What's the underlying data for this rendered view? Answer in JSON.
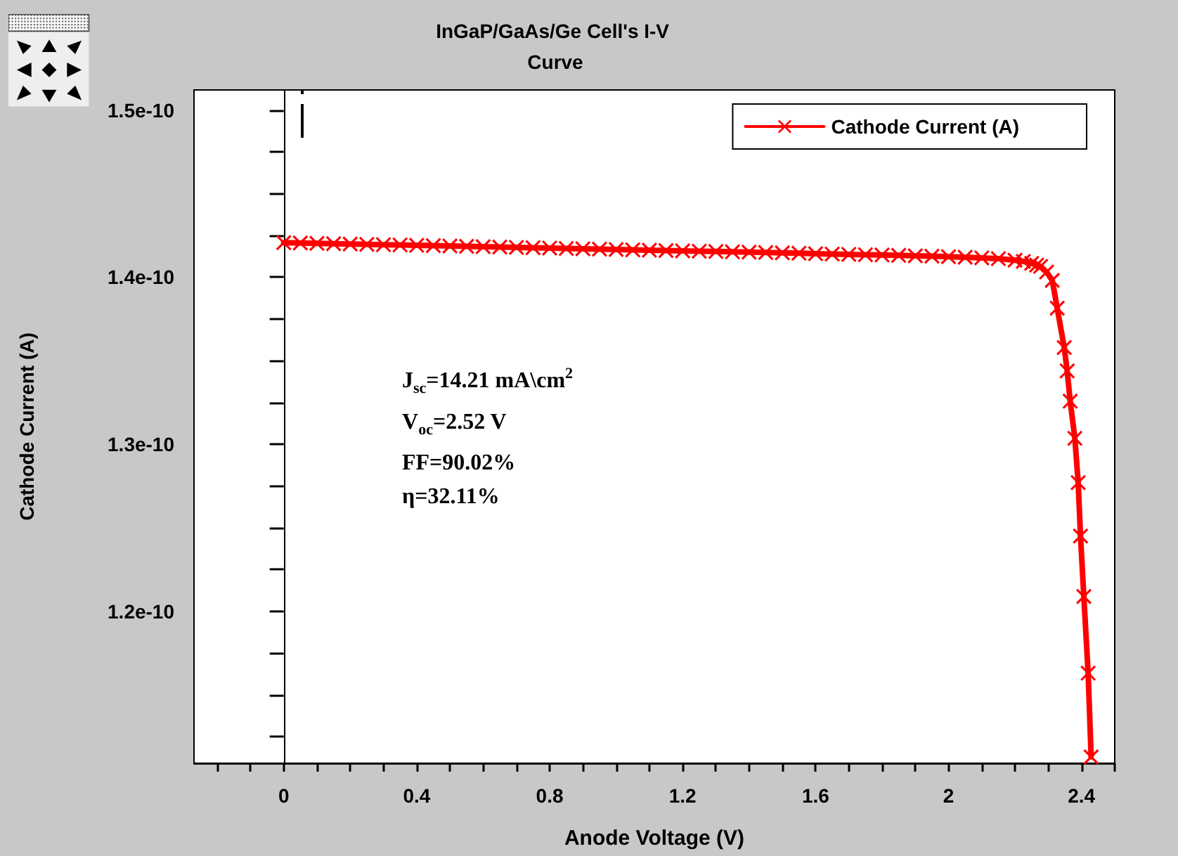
{
  "chart_data": {
    "type": "line",
    "title": "InGaP/GaAs/Ge Cell's I-V Curve",
    "xlabel": "Anode Voltage (V)",
    "ylabel": "Cathode Current (A)",
    "annotations": [
      "J$_{sc}$=14.21 mA\\cm$^{2}$",
      "V$_{oc}$=2.52 V",
      "FF=90.02%",
      "η=32.11%"
    ],
    "x": [
      0,
      0.05,
      0.1,
      0.15,
      0.2,
      0.25,
      0.3,
      0.35,
      0.4,
      0.45,
      0.5,
      0.55,
      0.6,
      0.65,
      0.7,
      0.75,
      0.8,
      0.85,
      0.9,
      0.95,
      1.0,
      1.05,
      1.1,
      1.15,
      1.2,
      1.25,
      1.3,
      1.35,
      1.4,
      1.45,
      1.5,
      1.55,
      1.6,
      1.65,
      1.7,
      1.75,
      1.8,
      1.85,
      1.9,
      1.95,
      2.0,
      2.05,
      2.1,
      2.15,
      2.2,
      2.225,
      2.25,
      2.265,
      2.277,
      2.295,
      2.312,
      2.327,
      2.348,
      2.357,
      2.366,
      2.38,
      2.39,
      2.397,
      2.407,
      2.42,
      2.429
    ],
    "series": [
      {
        "name": "Cathode Current (A)",
        "color": "#ff0000",
        "values": [
          1.4206e-10,
          1.4204e-10,
          1.4202e-10,
          1.42e-10,
          1.4198e-10,
          1.4196e-10,
          1.4194e-10,
          1.4192e-10,
          1.419e-10,
          1.4188e-10,
          1.4186e-10,
          1.4184e-10,
          1.4182e-10,
          1.418e-10,
          1.4178e-10,
          1.4176e-10,
          1.4174e-10,
          1.4171e-10,
          1.4169e-10,
          1.4167e-10,
          1.4165e-10,
          1.4163e-10,
          1.4161e-10,
          1.4159e-10,
          1.4157e-10,
          1.4155e-10,
          1.4153e-10,
          1.4151e-10,
          1.4149e-10,
          1.4147e-10,
          1.4145e-10,
          1.4143e-10,
          1.414e-10,
          1.4138e-10,
          1.4136e-10,
          1.4134e-10,
          1.4132e-10,
          1.413e-10,
          1.4127e-10,
          1.4125e-10,
          1.4122e-10,
          1.4119e-10,
          1.4115e-10,
          1.411e-10,
          1.4101e-10,
          1.4094e-10,
          1.4082e-10,
          1.4072e-10,
          1.4064e-10,
          1.403e-10,
          1.398e-10,
          1.3814e-10,
          1.3578e-10,
          1.3438e-10,
          1.3257e-10,
          1.3035e-10,
          1.277e-10,
          1.245e-10,
          1.2088e-10,
          1.1629e-10,
          1.1128e-10
        ]
      }
    ],
    "xlim": [
      -0.27,
      2.5
    ],
    "xticks": [
      {
        "value": -0.2,
        "label": null
      },
      {
        "value": -0.1,
        "label": null
      },
      0,
      {
        "value": 0.1,
        "label": null
      },
      {
        "value": 0.2,
        "label": null
      },
      {
        "value": 0.3,
        "label": null
      },
      0.4,
      {
        "value": 0.5,
        "label": null
      },
      {
        "value": 0.6,
        "label": null
      },
      {
        "value": 0.7,
        "label": null
      },
      0.8,
      {
        "value": 0.9,
        "label": null
      },
      {
        "value": 1.0,
        "label": null
      },
      {
        "value": 1.1,
        "label": null
      },
      1.2,
      {
        "value": 1.3,
        "label": null
      },
      {
        "value": 1.4,
        "label": null
      },
      {
        "value": 1.5,
        "label": null
      },
      1.6,
      {
        "value": 1.7,
        "label": null
      },
      {
        "value": 1.8,
        "label": null
      },
      {
        "value": 1.9,
        "label": null
      },
      2,
      {
        "value": 2.1,
        "label": null
      },
      {
        "value": 2.2,
        "label": null
      },
      {
        "value": 2.3,
        "label": null
      },
      2.4,
      {
        "value": 2.5,
        "label": null
      }
    ],
    "ylim": [
      1.109e-10,
      1.512e-10
    ],
    "yticks": [
      {
        "value": 1.125e-10,
        "label": null
      },
      {
        "value": 1.15e-10,
        "label": null
      },
      {
        "value": 1.175e-10,
        "label": null
      },
      {
        "value": 1.2e-10,
        "label": "1.2e-10"
      },
      {
        "value": 1.225e-10,
        "label": null
      },
      {
        "value": 1.25e-10,
        "label": null
      },
      {
        "value": 1.275e-10,
        "label": null
      },
      {
        "value": 1.3e-10,
        "label": "1.3e-10"
      },
      {
        "value": 1.325e-10,
        "label": null
      },
      {
        "value": 1.35e-10,
        "label": null
      },
      {
        "value": 1.375e-10,
        "label": null
      },
      {
        "value": 1.4e-10,
        "label": "1.4e-10"
      },
      {
        "value": 1.425e-10,
        "label": null
      },
      {
        "value": 1.45e-10,
        "label": null
      },
      {
        "value": 1.475e-10,
        "label": null
      },
      {
        "value": 1.5e-10,
        "label": "1.5e-10"
      }
    ],
    "legend": "top right",
    "marker": "cross",
    "line_style": "solid"
  }
}
